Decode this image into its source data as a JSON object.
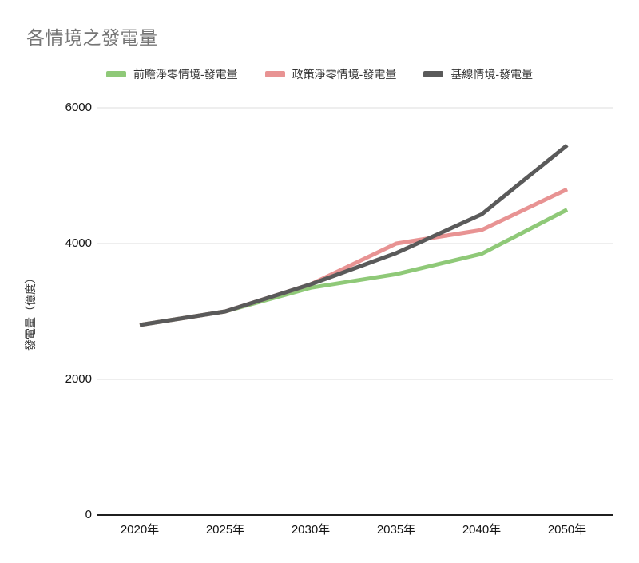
{
  "title": "各情境之發電量",
  "y_axis": {
    "label": "發電量（億度）"
  },
  "colors": {
    "title_text": "#757575",
    "grid_line": "#DCDCDC",
    "axis_line": "#1F1F1F",
    "tick_text": "#141414"
  },
  "chart_data": {
    "type": "line",
    "title": "各情境之發電量",
    "xlabel": "",
    "ylabel": "發電量（億度）",
    "categories": [
      "2020年",
      "2025年",
      "2030年",
      "2035年",
      "2040年",
      "2050年"
    ],
    "series": [
      {
        "name": "前瞻淨零情境-發電量",
        "color": "#8FC978",
        "values": [
          2800,
          3000,
          3350,
          3550,
          3850,
          4500
        ]
      },
      {
        "name": "政策淨零情境-發電量",
        "color": "#E89393",
        "values": [
          2800,
          3000,
          3400,
          4000,
          4200,
          4800
        ]
      },
      {
        "name": "基線情境-發電量",
        "color": "#5A5A5A",
        "values": [
          2800,
          3000,
          3400,
          3860,
          4430,
          5450
        ]
      }
    ],
    "y_ticks": [
      0,
      2000,
      4000,
      6000
    ],
    "ylim": [
      0,
      6000
    ],
    "grid": "horizontal",
    "legend_position": "top"
  }
}
